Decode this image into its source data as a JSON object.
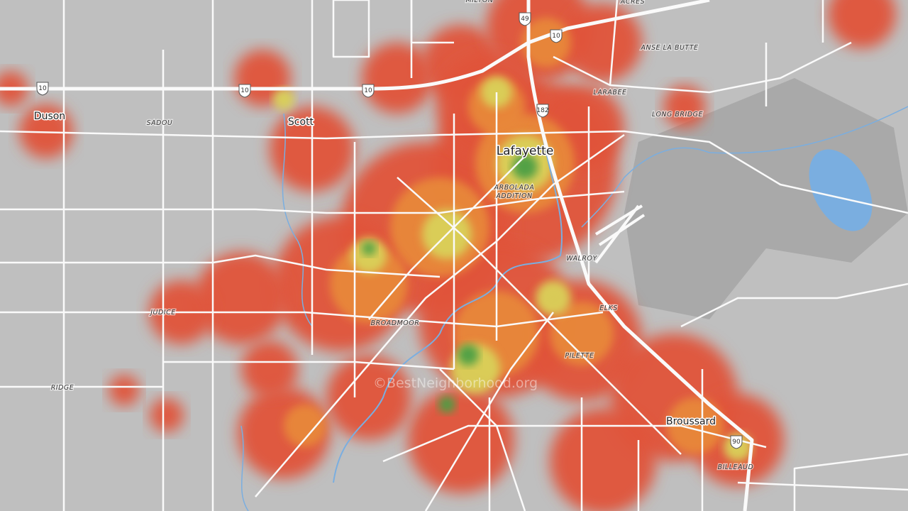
{
  "places": [
    "Duson",
    "Scott",
    "Lafayette",
    "Broussard"
  ],
  "neighborhoods": [
    "MILTON",
    "ACRES",
    "ANSE LA BUTTE",
    "LARABEE",
    "LONG BRIDGE",
    "SADOU",
    "ARBOLADA",
    "ADDITION",
    "WALROY",
    "ELKS",
    "JUDICE",
    "BROADMOOR",
    "PILETTE",
    "RIDGE",
    "BILLEAUD"
  ],
  "shields": [
    "10",
    "10",
    "10",
    "10",
    "49",
    "182",
    "90"
  ],
  "watermark": "©BestNeighborhood.org"
}
